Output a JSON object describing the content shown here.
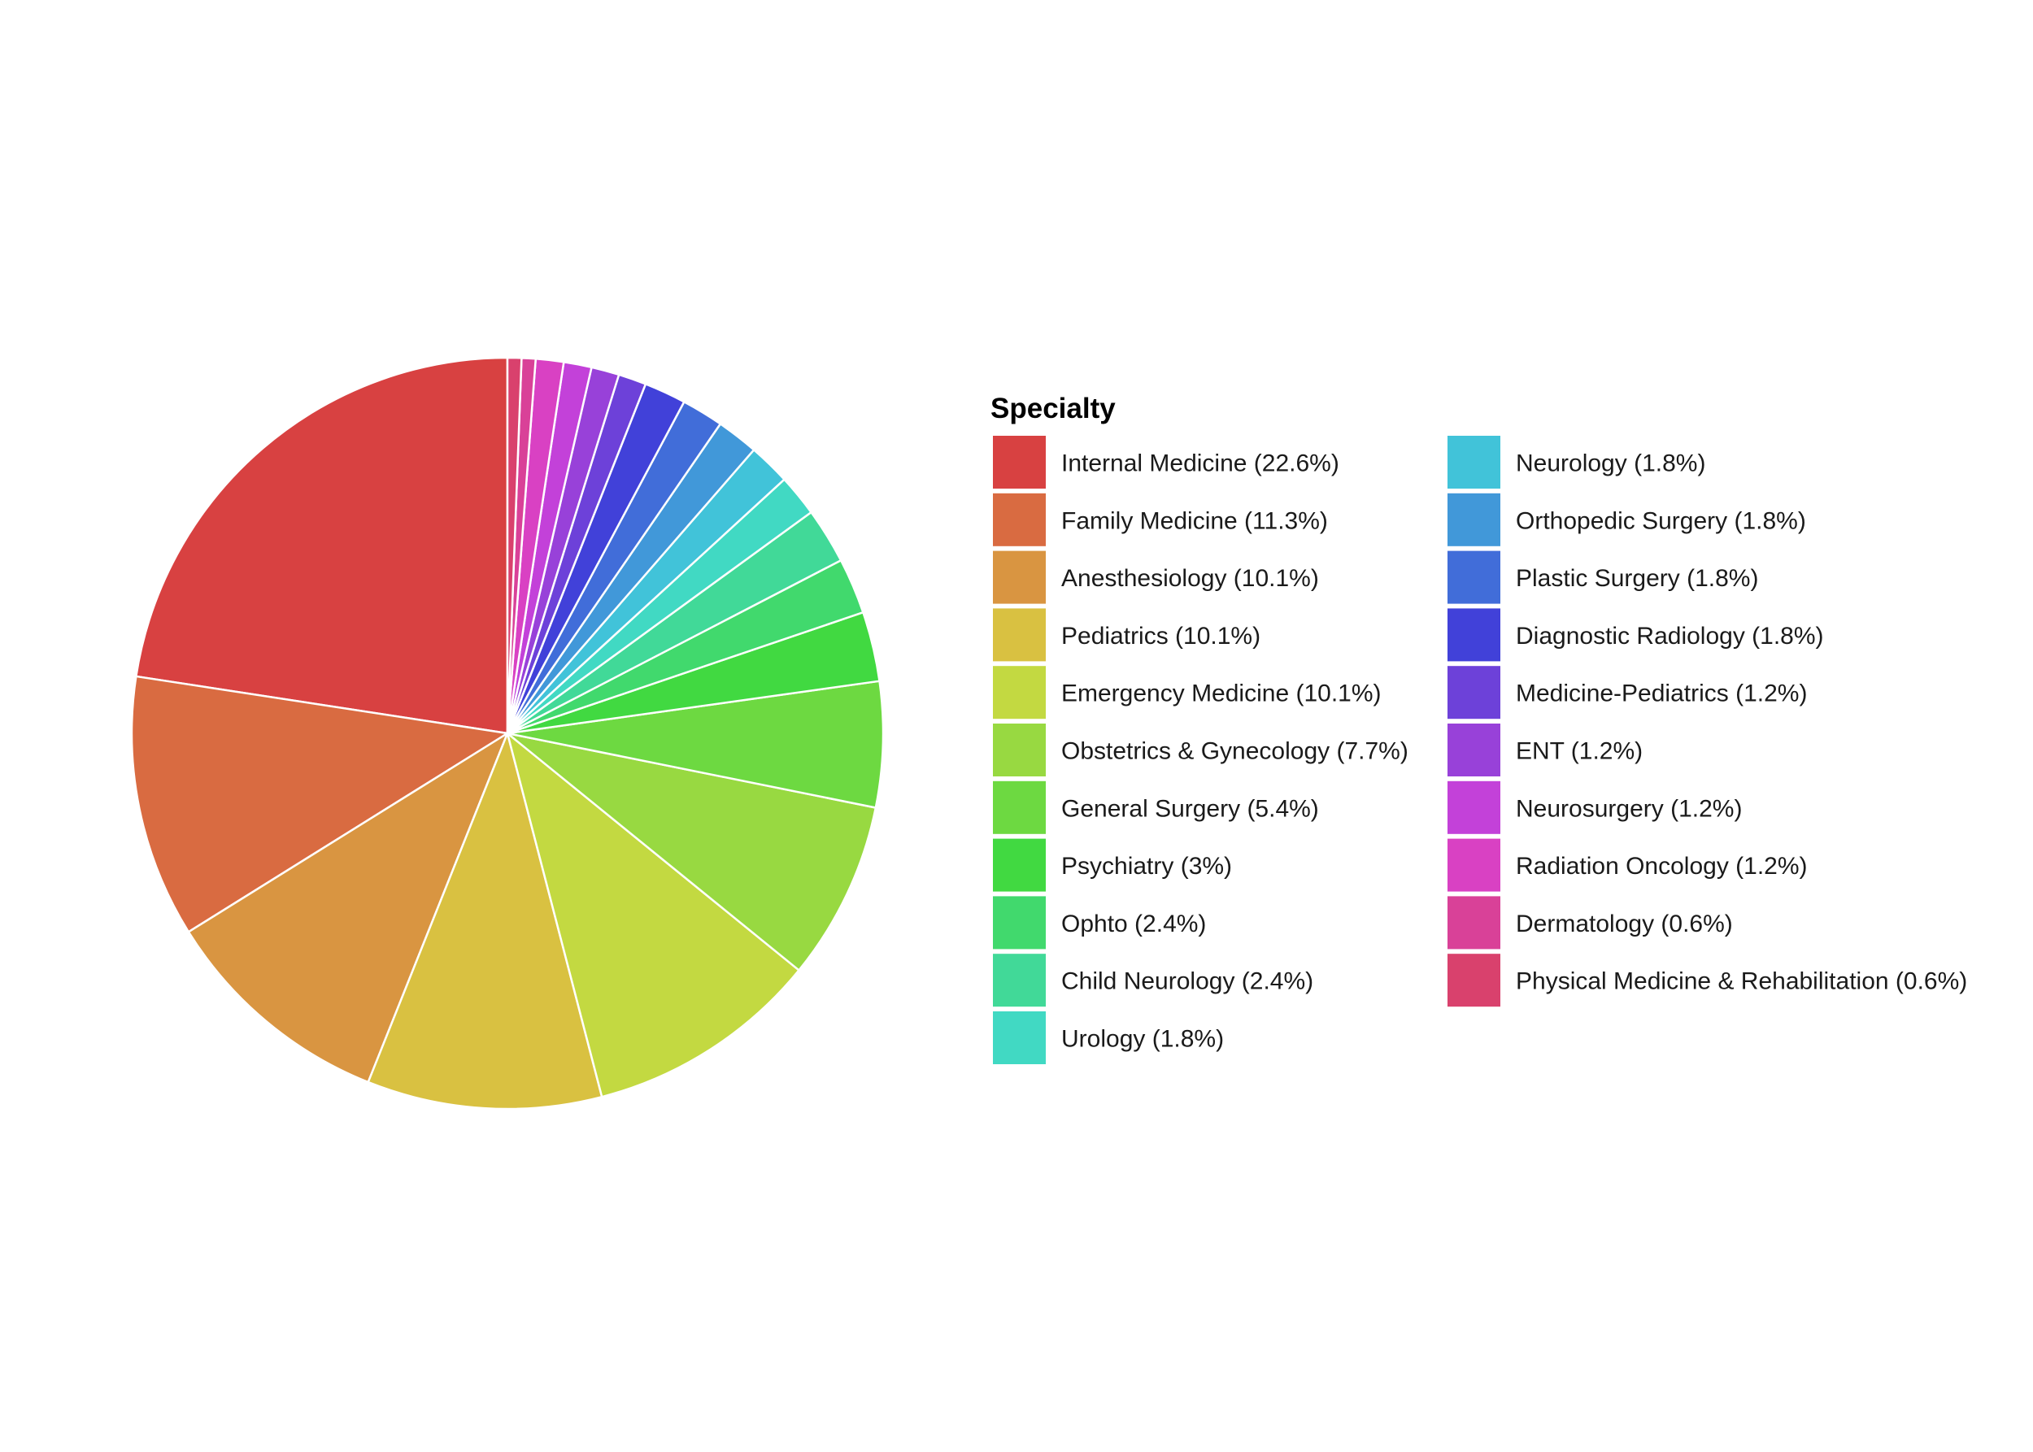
{
  "chart_data": {
    "type": "pie",
    "legend_title": "Specialty",
    "legend_position": "right",
    "slices": [
      {
        "label": "Internal Medicine (22.6%)",
        "value": 22.6,
        "color": "#D84141"
      },
      {
        "label": "Family Medicine (11.3%)",
        "value": 11.3,
        "color": "#D96B41"
      },
      {
        "label": "Anesthesiology (10.1%)",
        "value": 10.1,
        "color": "#D99541"
      },
      {
        "label": "Pediatrics (10.1%)",
        "value": 10.1,
        "color": "#D9C141"
      },
      {
        "label": "Emergency Medicine (10.1%)",
        "value": 10.1,
        "color": "#C3D941"
      },
      {
        "label": "Obstetrics & Gynecology (7.7%)",
        "value": 7.7,
        "color": "#98D941"
      },
      {
        "label": "General Surgery (5.4%)",
        "value": 5.4,
        "color": "#6DD941"
      },
      {
        "label": "Psychiatry (3%)",
        "value": 3.0,
        "color": "#41D941"
      },
      {
        "label": "Ophto (2.4%)",
        "value": 2.4,
        "color": "#41D96D"
      },
      {
        "label": "Child Neurology (2.4%)",
        "value": 2.4,
        "color": "#41D998"
      },
      {
        "label": "Urology (1.8%)",
        "value": 1.8,
        "color": "#41D9C3"
      },
      {
        "label": "Neurology (1.8%)",
        "value": 1.8,
        "color": "#41C3D9"
      },
      {
        "label": "Orthopedic Surgery (1.8%)",
        "value": 1.8,
        "color": "#4198D9"
      },
      {
        "label": "Plastic Surgery (1.8%)",
        "value": 1.8,
        "color": "#416DD9"
      },
      {
        "label": "Diagnostic Radiology (1.8%)",
        "value": 1.8,
        "color": "#4141D9"
      },
      {
        "label": "Medicine-Pediatrics (1.2%)",
        "value": 1.2,
        "color": "#6D41D9"
      },
      {
        "label": "ENT (1.2%)",
        "value": 1.2,
        "color": "#9841D9"
      },
      {
        "label": "Neurosurgery (1.2%)",
        "value": 1.2,
        "color": "#C341D9"
      },
      {
        "label": "Radiation Oncology (1.2%)",
        "value": 1.2,
        "color": "#D941C3"
      },
      {
        "label": "Dermatology (0.6%)",
        "value": 0.6,
        "color": "#D94198"
      },
      {
        "label": "Physical Medicine & Rehabilitation (0.6%)",
        "value": 0.6,
        "color": "#D9416D"
      }
    ]
  }
}
